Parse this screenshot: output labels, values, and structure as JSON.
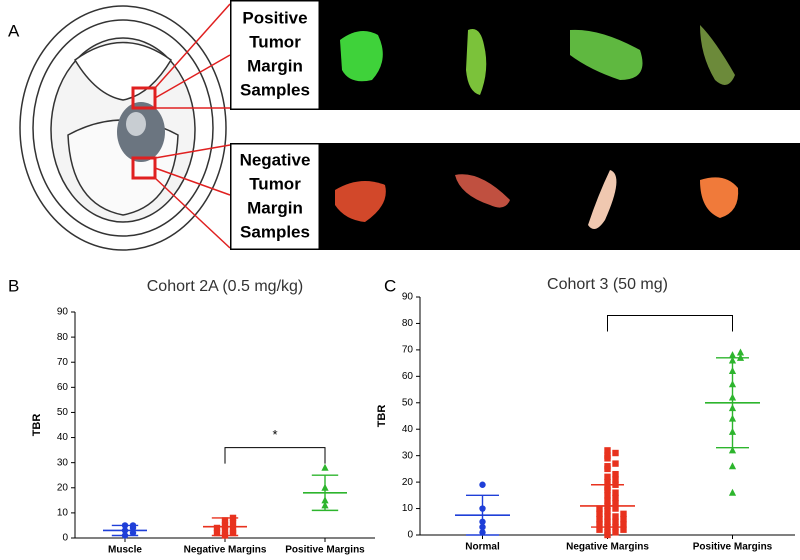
{
  "panel_labels": [
    "A",
    "B",
    "C"
  ],
  "image_labels": [
    [
      "Positive",
      "Tumor",
      "Margin",
      "Samples"
    ],
    [
      "Negative",
      "Tumor",
      "Margin",
      "Samples"
    ]
  ],
  "chart_data": [
    {
      "type": "dot-plot",
      "title": "Cohort 2A (0.5 mg/kg)",
      "y_label": "TBR",
      "categories": [
        "Muscle",
        "Negative Margins",
        "Positive Margins"
      ],
      "colors": [
        "#1f3fd8",
        "#e8321e",
        "#2db52d"
      ],
      "markers": [
        "circle",
        "square",
        "triangle"
      ],
      "points": [
        [
          1,
          2,
          3,
          4,
          5,
          5
        ],
        [
          1,
          2,
          2,
          3,
          3,
          4,
          5,
          6,
          7,
          8
        ],
        [
          13,
          15,
          20,
          28
        ]
      ],
      "means": [
        3,
        4.5,
        18
      ],
      "errors": [
        2,
        3.5,
        7
      ],
      "significance": {
        "from": 1,
        "to": 2,
        "y": 36,
        "label": "*"
      },
      "ylim": [
        0,
        90
      ],
      "yticks": [
        0,
        10,
        20,
        30,
        40,
        50,
        60,
        70,
        80,
        90
      ]
    },
    {
      "type": "dot-plot",
      "title": "Cohort 3 (50 mg)",
      "y_label": "TBR",
      "categories": [
        "Normal",
        "Negative Margins",
        "Positive Margins"
      ],
      "colors": [
        "#1f3fd8",
        "#e8321e",
        "#2db52d"
      ],
      "markers": [
        "circle",
        "square",
        "triangle"
      ],
      "points": [
        [
          1,
          3,
          5,
          10,
          19
        ],
        [
          0,
          1,
          1,
          2,
          2,
          3,
          3,
          4,
          4,
          5,
          5,
          6,
          6,
          7,
          7,
          8,
          8,
          9,
          10,
          10,
          11,
          12,
          13,
          14,
          15,
          16,
          17,
          18,
          19,
          20,
          21,
          22,
          23,
          25,
          26,
          27,
          29,
          30,
          31,
          32
        ],
        [
          16,
          26,
          32,
          39,
          44,
          48,
          52,
          57,
          62,
          66,
          67,
          68,
          69
        ]
      ],
      "means": [
        7.5,
        11,
        50
      ],
      "errors": [
        7.5,
        8,
        17
      ],
      "significance": {
        "from": 1,
        "to": 2,
        "y": 83
      },
      "ylim": [
        0,
        90
      ],
      "yticks": [
        0,
        10,
        20,
        30,
        40,
        50,
        60,
        70,
        80,
        90
      ]
    }
  ]
}
